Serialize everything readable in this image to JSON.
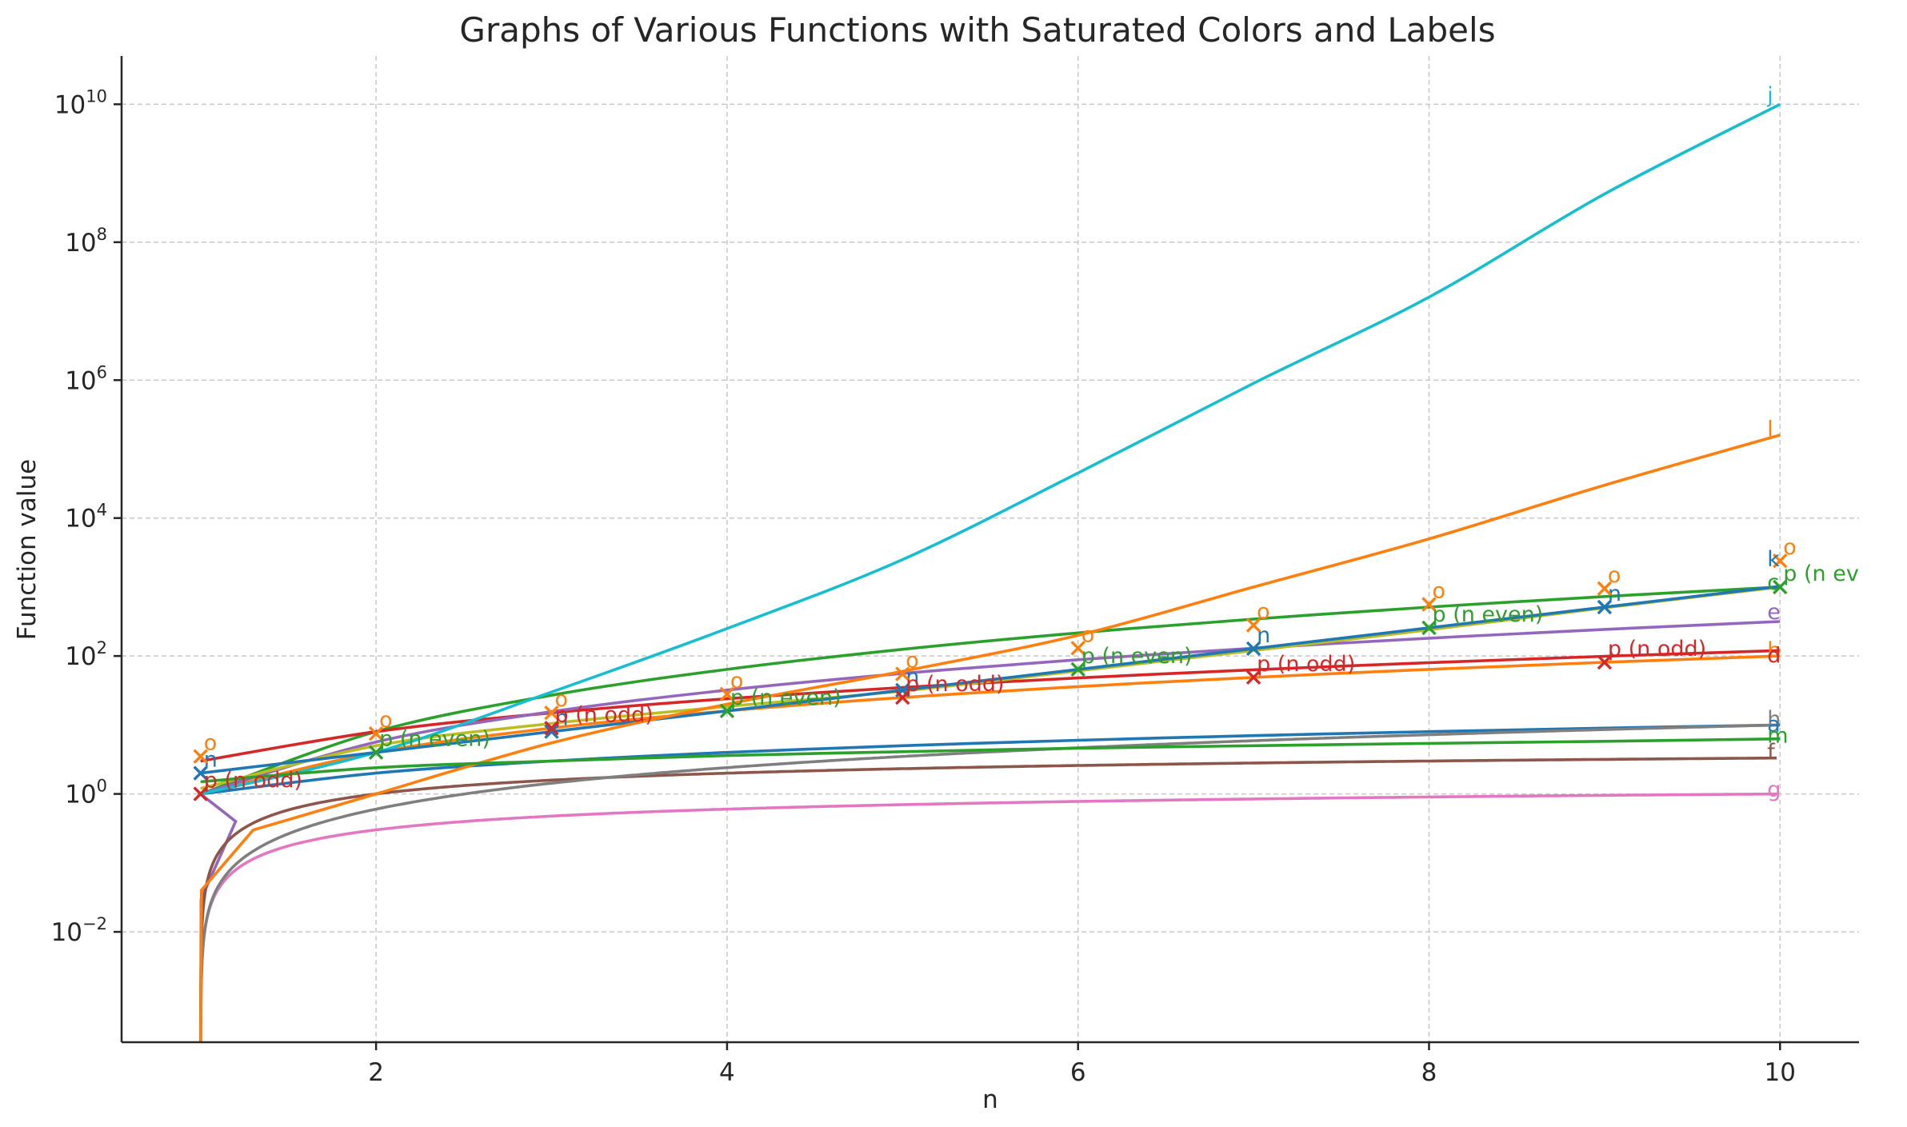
{
  "chart_data": {
    "type": "line",
    "title": "Graphs of Various Functions with Saturated Colors and Labels",
    "xlabel": "n",
    "ylabel": "Function value",
    "xlim": [
      0.55,
      10.45
    ],
    "ylim_log10": [
      -3.6,
      10.7
    ],
    "y_scale": "log",
    "grid": true,
    "x_ticks": [
      2,
      4,
      6,
      8,
      10
    ],
    "y_ticks": [
      {
        "exp": 10,
        "base": "10",
        "sup": "10"
      },
      {
        "exp": 8,
        "base": "10",
        "sup": "8"
      },
      {
        "exp": 6,
        "base": "10",
        "sup": "6"
      },
      {
        "exp": 4,
        "base": "10",
        "sup": "4"
      },
      {
        "exp": 2,
        "base": "10",
        "sup": "2"
      },
      {
        "exp": 0,
        "base": "10",
        "sup": "0"
      },
      {
        "exp": -2,
        "base": "10",
        "sup": "−2"
      }
    ],
    "series": [
      {
        "name": "a",
        "label": "a",
        "color": "#1f77b4",
        "kind": "curve",
        "func": "n",
        "x": [
          1,
          2,
          3,
          4,
          5,
          6,
          7,
          8,
          9,
          10
        ],
        "y": [
          1,
          2,
          3,
          4,
          5,
          6,
          7,
          8,
          9,
          10
        ]
      },
      {
        "name": "b",
        "label": "b",
        "color": "#ff7f0e",
        "kind": "curve",
        "func": "n^2",
        "x": [
          1,
          2,
          3,
          4,
          5,
          6,
          7,
          8,
          9,
          10
        ],
        "y": [
          1,
          4,
          9,
          16,
          25,
          36,
          49,
          64,
          81,
          100
        ]
      },
      {
        "name": "c",
        "label": "c",
        "color": "#2ca02c",
        "kind": "curve",
        "func": "n^3",
        "x": [
          1,
          2,
          3,
          4,
          5,
          6,
          7,
          8,
          9,
          10
        ],
        "y": [
          1,
          8,
          27,
          64,
          125,
          216,
          343,
          512,
          729,
          1000
        ]
      },
      {
        "name": "d",
        "label": "d",
        "color": "#d62728",
        "kind": "curve",
        "func": "n^2 + 2n",
        "x": [
          1,
          2,
          3,
          4,
          5,
          6,
          7,
          8,
          9,
          10
        ],
        "y": [
          3,
          8,
          15,
          24,
          35,
          48,
          63,
          80,
          99,
          120
        ]
      },
      {
        "name": "e",
        "label": "e",
        "color": "#9467bd",
        "kind": "curve",
        "func": "n^2.5",
        "x": [
          1,
          2,
          3,
          4,
          5,
          6,
          7,
          8,
          9,
          10
        ],
        "y": [
          1,
          5.66,
          15.6,
          32,
          55.9,
          88.2,
          129.6,
          181,
          243,
          316.2
        ]
      },
      {
        "name": "f",
        "label": "f",
        "color": "#8c564b",
        "kind": "curve",
        "func": "log2(n)",
        "x": [
          1,
          2,
          3,
          4,
          5,
          6,
          7,
          8,
          9,
          10
        ],
        "y": [
          0,
          1,
          1.58,
          2,
          2.32,
          2.58,
          2.81,
          3,
          3.17,
          3.32
        ]
      },
      {
        "name": "g",
        "label": "g",
        "color": "#e377c2",
        "kind": "curve",
        "func": "log10(n)",
        "x": [
          1,
          2,
          3,
          4,
          5,
          6,
          7,
          8,
          9,
          10
        ],
        "y": [
          0,
          0.301,
          0.477,
          0.602,
          0.699,
          0.778,
          0.845,
          0.903,
          0.954,
          1
        ]
      },
      {
        "name": "h",
        "label": "h",
        "color": "#7f7f7f",
        "kind": "curve",
        "func": "n*log10(n)",
        "x": [
          1,
          2,
          3,
          4,
          5,
          6,
          7,
          8,
          9,
          10
        ],
        "y": [
          0,
          0.6,
          1.43,
          2.41,
          3.49,
          4.67,
          5.92,
          7.22,
          8.59,
          10
        ]
      },
      {
        "name": "i",
        "label": "i",
        "color": "#bcbd22",
        "kind": "curve",
        "func": "n^3 linear-log",
        "x": [
          1,
          2,
          3,
          4,
          5,
          6,
          7,
          8,
          9,
          10
        ],
        "y": [
          1.2,
          5,
          10.5,
          18.5,
          31,
          61,
          120,
          240,
          500,
          1000
        ]
      },
      {
        "name": "j",
        "label": "j",
        "color": "#17becf",
        "kind": "curve",
        "func": "10^n",
        "x": [
          1,
          2,
          3,
          4,
          5,
          6,
          7,
          8,
          9,
          10
        ],
        "y": [
          1,
          4,
          30,
          250,
          2500,
          45000,
          900000,
          16000000,
          500000000,
          10000000000
        ]
      },
      {
        "name": "k",
        "label": "k",
        "color": "#1f77b4",
        "kind": "curve",
        "func": "2^n",
        "x": [
          1,
          2,
          3,
          4,
          5,
          6,
          7,
          8,
          9,
          10
        ],
        "y": [
          2,
          4,
          8,
          16,
          32,
          64,
          128,
          256,
          512,
          1024
        ]
      },
      {
        "name": "l",
        "label": "l",
        "color": "#ff7f0e",
        "kind": "curve",
        "func": "~n^5",
        "x": [
          1,
          2,
          3,
          4,
          5,
          6,
          7,
          8,
          9,
          10
        ],
        "y": [
          0.001,
          1,
          5.5,
          20,
          60,
          200,
          1000,
          5000,
          30000,
          160000
        ]
      },
      {
        "name": "m",
        "label": "m",
        "color": "#2ca02c",
        "kind": "curve",
        "func": "~sqrt(n)*2",
        "x": [
          1,
          2,
          3,
          4,
          5,
          6,
          7,
          8,
          9,
          10
        ],
        "y": [
          1.5,
          2.4,
          3.0,
          3.6,
          4.1,
          4.6,
          5.0,
          5.4,
          5.8,
          6.3
        ]
      },
      {
        "name": "n",
        "label": "n",
        "color": "#1f77b4",
        "kind": "markers",
        "marker": "x",
        "x": [
          1,
          3,
          5,
          7,
          9
        ],
        "y": [
          2,
          8,
          32,
          128,
          512
        ]
      },
      {
        "name": "o",
        "label": "o",
        "color": "#ff7f0e",
        "kind": "markers",
        "marker": "x",
        "x": [
          1,
          2,
          3,
          4,
          5,
          6,
          7,
          8,
          9,
          10
        ],
        "y": [
          3.5,
          7.5,
          15,
          28,
          55,
          130,
          280,
          560,
          950,
          2400
        ]
      },
      {
        "name": "p (n odd)",
        "label": "p (n odd)",
        "color": "#d62728",
        "kind": "markers",
        "marker": "x",
        "x": [
          1,
          3,
          5,
          7,
          9
        ],
        "y": [
          1,
          9,
          25,
          49,
          81
        ]
      },
      {
        "name": "p (n even)",
        "label": "p (n even)",
        "color": "#2ca02c",
        "kind": "markers",
        "marker": "x",
        "x": [
          2,
          4,
          6,
          8,
          10
        ],
        "y": [
          4,
          16,
          64,
          256,
          1000
        ]
      }
    ],
    "curve_end_labels": [
      {
        "text": "j",
        "color": "#17becf",
        "x": 10,
        "y": 14000000000
      },
      {
        "text": "l",
        "color": "#ff7f0e",
        "x": 10,
        "y": 200000
      },
      {
        "text": "k",
        "color": "#1f77b4",
        "x": 10,
        "y": 2600
      },
      {
        "text": "c",
        "color": "#2ca02c",
        "x": 10,
        "y": 1200
      },
      {
        "text": "e",
        "color": "#9467bd",
        "x": 10,
        "y": 450
      },
      {
        "text": "b",
        "color": "#ff7f0e",
        "x": 10,
        "y": 125
      },
      {
        "text": "d",
        "color": "#d62728",
        "x": 10,
        "y": 105
      },
      {
        "text": "h",
        "color": "#7f7f7f",
        "x": 10,
        "y": 12.5
      },
      {
        "text": "a",
        "color": "#1f77b4",
        "x": 10,
        "y": 10.5
      },
      {
        "text": "m",
        "color": "#2ca02c",
        "x": 10,
        "y": 7.2
      },
      {
        "text": "f",
        "color": "#8c564b",
        "x": 10,
        "y": 4.2
      },
      {
        "text": "g",
        "color": "#e377c2",
        "x": 10,
        "y": 1.2
      }
    ]
  }
}
